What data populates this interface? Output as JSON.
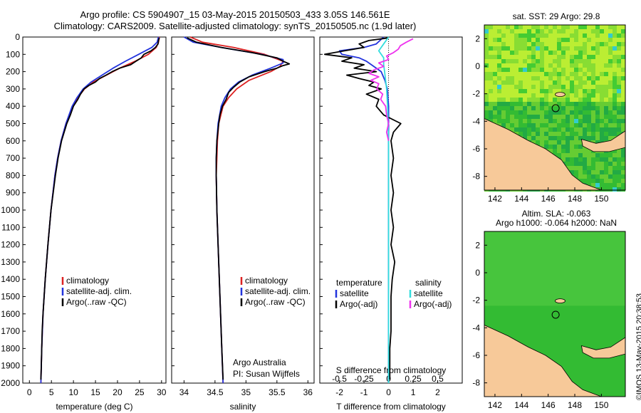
{
  "header": {
    "title_line1": "Argo profile: CS 5904907_15 03-May-2015 20150503_433 3.05S 146.561E",
    "title_line2": "Climatology: CARS2009. Satellite-adjusted climatology: synTS_20150505.nc (1.9d later)"
  },
  "colors": {
    "climatology": "#dd2222",
    "satellite": "#2233dd",
    "argo": "#000000",
    "sat_salinity": "#33dddd",
    "argo_adj_salinity": "#ee33ee",
    "land": "#f7c999",
    "sea_sst": "#22bb33",
    "sea_sla": "#33bb33"
  },
  "chart_data": [
    {
      "type": "line",
      "name_id": "temperature",
      "xlabel": "temperature (deg C)",
      "ylim": [
        2000,
        0
      ],
      "xlim": [
        -1.5,
        31
      ],
      "xticks": [
        0,
        5,
        10,
        15,
        20,
        25,
        30
      ],
      "yticks": [
        0,
        100,
        200,
        300,
        400,
        500,
        600,
        700,
        800,
        900,
        1000,
        1100,
        1200,
        1300,
        1400,
        1500,
        1600,
        1700,
        1800,
        1900,
        2000
      ],
      "legend": [
        "climatology",
        "satellite-adj. clim.",
        "Argo(..raw -QC)"
      ],
      "series": [
        {
          "name": "climatology",
          "depth": [
            0,
            30,
            60,
            100,
            140,
            180,
            220,
            260,
            300,
            350,
            400,
            500,
            600,
            700,
            800,
            1000,
            1200,
            1400,
            1600,
            1800,
            2000
          ],
          "values": [
            29.5,
            29.3,
            28.8,
            27.0,
            24.0,
            20.5,
            17.5,
            14.5,
            12.5,
            11.0,
            9.8,
            8.3,
            7.2,
            6.4,
            5.8,
            4.9,
            4.2,
            3.6,
            3.1,
            2.8,
            2.6
          ]
        },
        {
          "name": "satellite-adj. clim.",
          "depth": [
            0,
            30,
            60,
            100,
            140,
            180,
            220,
            260,
            300,
            350,
            400,
            500,
            600,
            700,
            800,
            1000,
            1200,
            1400,
            1600,
            1800,
            2000
          ],
          "values": [
            29.3,
            29.0,
            27.8,
            24.8,
            21.8,
            19.0,
            16.5,
            14.0,
            12.2,
            10.8,
            9.7,
            8.3,
            7.2,
            6.4,
            5.8,
            4.9,
            4.2,
            3.6,
            3.1,
            2.8,
            2.6
          ]
        },
        {
          "name": "Argo(..raw -QC)",
          "depth": [
            5,
            20,
            40,
            60,
            80,
            100,
            120,
            140,
            160,
            180,
            200,
            220,
            240,
            260,
            280,
            300,
            330,
            360,
            400,
            450,
            500,
            600,
            700,
            800,
            1000,
            1200,
            1400,
            1600,
            1700,
            1800,
            1900,
            1980
          ],
          "values": [
            29.5,
            29.3,
            29.2,
            28.6,
            27.6,
            26.0,
            25.4,
            24.2,
            23.0,
            20.5,
            18.8,
            17.4,
            15.9,
            15.0,
            13.5,
            12.4,
            11.6,
            11.0,
            10.0,
            9.3,
            8.5,
            7.3,
            6.5,
            5.9,
            4.9,
            4.2,
            3.6,
            3.1,
            2.9,
            2.8,
            2.7,
            2.6
          ]
        }
      ]
    },
    {
      "type": "line",
      "name_id": "salinity",
      "xlabel": "salinity",
      "ylim": [
        2000,
        0
      ],
      "xlim": [
        33.8,
        36.1
      ],
      "xticks": [
        34,
        34.5,
        35,
        35.5,
        36
      ],
      "legend": [
        "climatology",
        "satellite-adj. clim.",
        "Argo(..raw -QC)"
      ],
      "annotation_line1": "Argo Australia",
      "annotation_line2": "PI: Susan Wijffels",
      "series": [
        {
          "name": "climatology",
          "depth": [
            0,
            30,
            60,
            100,
            140,
            170,
            200,
            250,
            300,
            350,
            400,
            500,
            600,
            700,
            800,
            1000,
            1200,
            1500,
            1800,
            2000
          ],
          "values": [
            34.1,
            34.3,
            34.8,
            35.3,
            35.6,
            35.55,
            35.4,
            35.05,
            34.85,
            34.72,
            34.63,
            34.56,
            34.54,
            34.53,
            34.52,
            34.53,
            34.55,
            34.58,
            34.61,
            34.63
          ]
        },
        {
          "name": "satellite-adj. clim.",
          "depth": [
            0,
            30,
            60,
            100,
            130,
            150,
            180,
            220,
            260,
            300,
            350,
            400,
            500,
            600,
            700,
            800,
            1000,
            1200,
            1500,
            1800,
            2000
          ],
          "values": [
            34.0,
            34.15,
            34.6,
            35.25,
            35.6,
            35.6,
            35.4,
            35.1,
            34.88,
            34.75,
            34.66,
            34.6,
            34.55,
            34.53,
            34.52,
            34.52,
            34.53,
            34.55,
            34.58,
            34.61,
            34.63
          ]
        },
        {
          "name": "Argo(..raw -QC)",
          "depth": [
            5,
            30,
            60,
            90,
            120,
            140,
            155,
            165,
            180,
            200,
            230,
            260,
            290,
            320,
            360,
            400,
            450,
            500,
            600,
            700,
            800,
            1000,
            1200,
            1500,
            1800,
            1980
          ],
          "values": [
            34.05,
            34.2,
            34.6,
            35.1,
            35.5,
            35.6,
            35.7,
            35.6,
            35.5,
            35.3,
            35.05,
            34.9,
            34.8,
            34.72,
            34.68,
            34.62,
            34.58,
            34.56,
            34.53,
            34.52,
            34.52,
            34.53,
            34.55,
            34.58,
            34.61,
            34.63
          ]
        }
      ]
    },
    {
      "type": "line",
      "name_id": "difference",
      "xlabel_top": "S difference from climatology",
      "xlabel": "T difference from climatology",
      "ylim": [
        2000,
        0
      ],
      "xlim": [
        -2.8,
        3.0
      ],
      "xticks_T": [
        -2,
        -1,
        0,
        1,
        2
      ],
      "xticks_S_labels": [
        "-0.5",
        "-0.25",
        "0",
        "0.25",
        "0.5"
      ],
      "legend_temperature_title": "temperature",
      "legend_salinity_title": "salinity",
      "legend_temperature": [
        "satellite",
        "Argo(-adj)"
      ],
      "legend_salinity": [
        "satellite",
        "Argo(-adj)"
      ],
      "series": [
        {
          "name": "T satellite",
          "depth": [
            0,
            40,
            60,
            80,
            100,
            120,
            140,
            160,
            180,
            200,
            250,
            300,
            400,
            600,
            800,
            1000,
            1500,
            2000
          ],
          "values": [
            -0.2,
            -0.5,
            -1.0,
            -2.0,
            -1.9,
            -1.2,
            -0.9,
            -0.7,
            -0.5,
            -0.3,
            -0.15,
            -0.05,
            0,
            0,
            0,
            0,
            0,
            0
          ]
        },
        {
          "name": "T Argo(-adj)",
          "depth": [
            5,
            20,
            40,
            60,
            80,
            100,
            120,
            140,
            160,
            180,
            200,
            220,
            240,
            260,
            280,
            300,
            330,
            360,
            400,
            450,
            500,
            550,
            600,
            700,
            800,
            900,
            1000,
            1100,
            1200,
            1300,
            1400,
            1500,
            1600,
            1700,
            1800,
            1900,
            1980
          ],
          "values": [
            0.0,
            -0.8,
            -1.2,
            -1.0,
            -1.8,
            -2.6,
            -1.5,
            -1.9,
            -1.0,
            -1.4,
            -0.5,
            -1.7,
            -1.2,
            -0.6,
            -0.8,
            -0.3,
            -0.9,
            -0.4,
            -0.5,
            -0.2,
            0.5,
            0.2,
            0.1,
            0.2,
            0.1,
            0.2,
            0.1,
            0.2,
            0.1,
            0.25,
            0.15,
            0.1,
            0.1,
            0.1,
            0.05,
            0.05,
            0.05
          ]
        },
        {
          "name": "S satellite",
          "depth": [
            0,
            40,
            80,
            120,
            160,
            200,
            300,
            400,
            600,
            800,
            1000,
            1500,
            2000
          ],
          "values": [
            0.0,
            -0.05,
            -0.1,
            -0.05,
            -0.05,
            -0.04,
            -0.02,
            -0.01,
            0,
            0,
            0,
            0,
            0
          ]
        },
        {
          "name": "S Argo(-adj)",
          "depth": [
            10,
            30,
            50,
            70,
            90,
            110,
            130,
            150,
            170,
            190,
            210,
            230,
            250,
            270,
            300,
            330,
            360,
            400,
            450,
            500,
            550,
            600
          ],
          "values": [
            0.25,
            0.18,
            0.12,
            0.1,
            0.05,
            -0.02,
            0.0,
            -0.1,
            -0.05,
            -0.15,
            -0.2,
            -0.1,
            -0.18,
            -0.1,
            -0.12,
            -0.06,
            -0.08,
            -0.03,
            -0.02,
            0.0,
            -0.02,
            0.0
          ]
        }
      ]
    },
    {
      "type": "heatmap",
      "name_id": "sst_map",
      "title": "sat. SST: 29  Argo: 29.8",
      "xlim": [
        141.2,
        151.8
      ],
      "ylim": [
        -9,
        3
      ],
      "xticks": [
        142,
        144,
        146,
        148,
        150
      ],
      "yticks": [
        2,
        0,
        -2,
        -4,
        -6,
        -8
      ],
      "marker": {
        "lon": 146.561,
        "lat": -3.05
      }
    },
    {
      "type": "heatmap",
      "name_id": "sla_map",
      "title_line1": "Altim. SLA: -0.063",
      "title_line2": "Argo h1000: -0.064  h2000: NaN",
      "xlim": [
        141.2,
        151.8
      ],
      "ylim": [
        -9,
        3
      ],
      "xticks": [
        142,
        144,
        146,
        148,
        150
      ],
      "yticks": [
        2,
        0,
        -2,
        -4,
        -6,
        -8
      ],
      "marker": {
        "lon": 146.561,
        "lat": -3.05
      }
    }
  ],
  "footer": {
    "stamp": "©IMOS 13-May-2015 20:38:53"
  }
}
